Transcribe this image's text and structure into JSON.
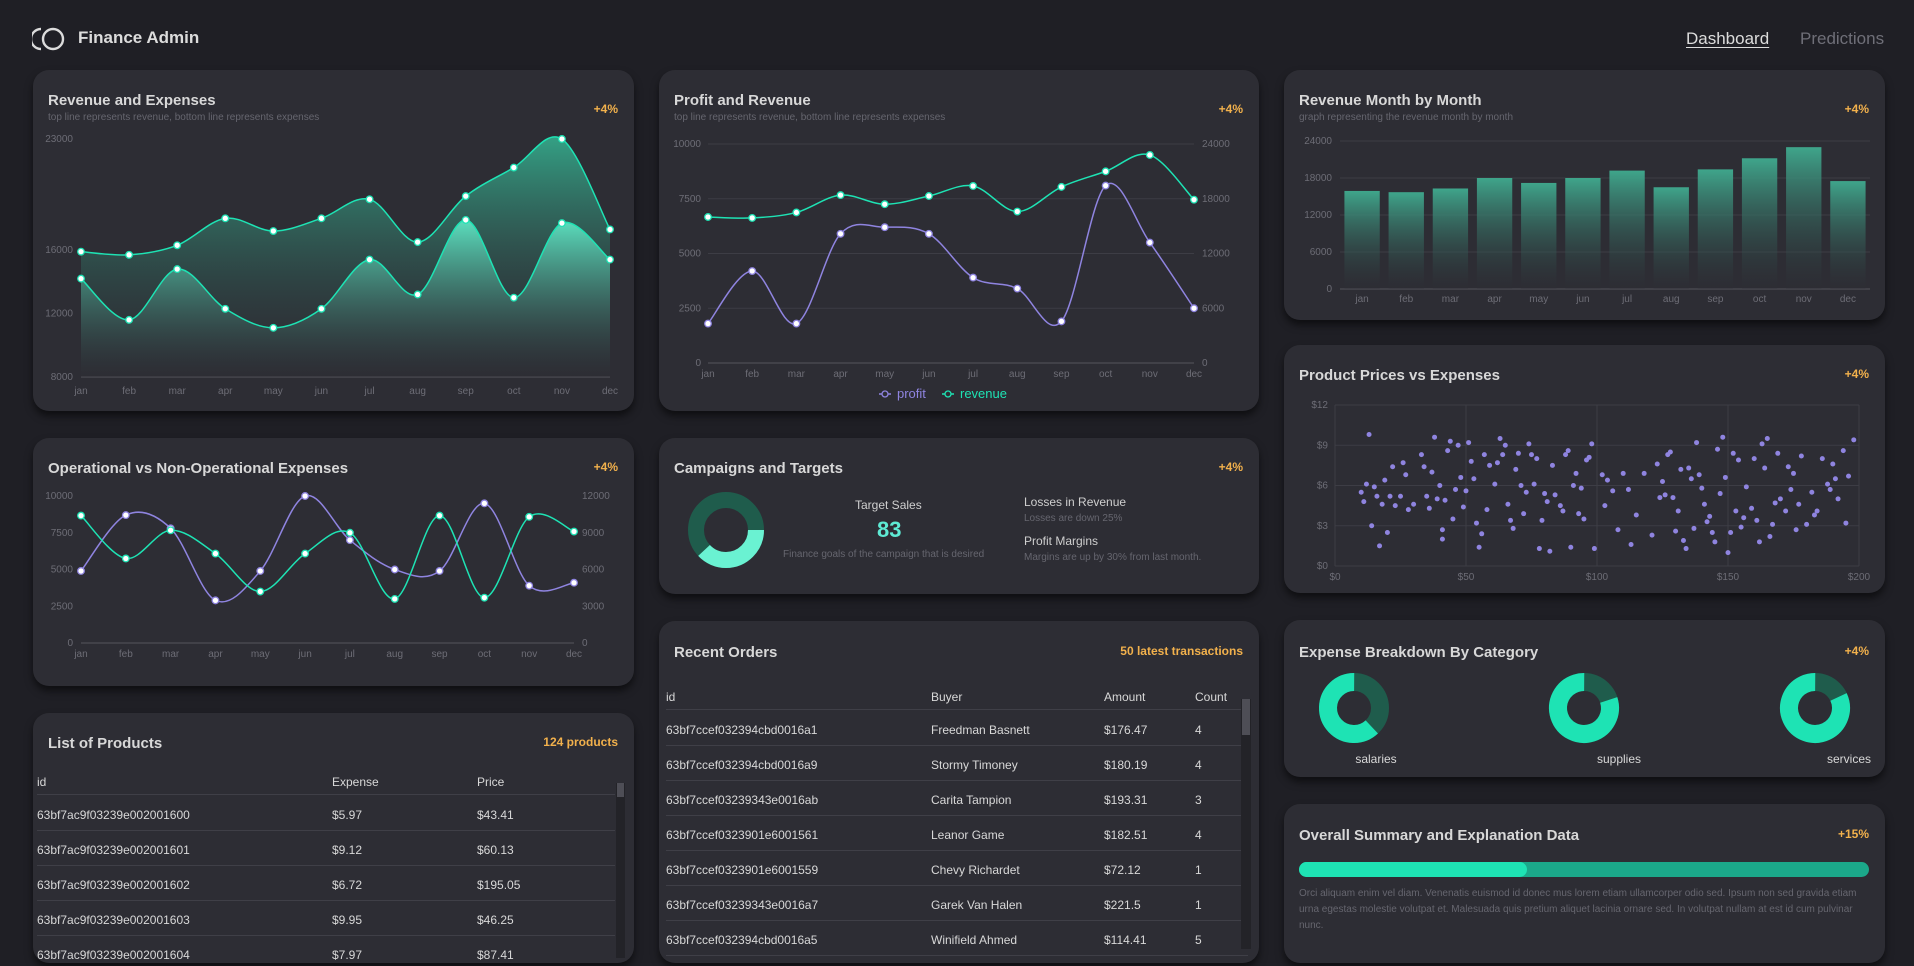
{
  "app": {
    "title": "Finance Admin"
  },
  "nav": [
    {
      "label": "Dashboard",
      "active": true
    },
    {
      "label": "Predictions",
      "active": false
    }
  ],
  "colors": {
    "accent": "#1ee3b4",
    "purple": "#8f84e0",
    "orange": "#f2b14c",
    "bg": "#1f1f25",
    "card": "#2d2d34"
  },
  "cards": {
    "rev_exp": {
      "title": "Revenue and Expenses",
      "subtitle": "top line represents revenue, bottom line represents expenses",
      "badge": "+4%"
    },
    "profit_rev": {
      "title": "Profit and Revenue",
      "subtitle": "top line represents revenue, bottom line represents expenses",
      "badge": "+4%",
      "legend_profit": "profit",
      "legend_revenue": "revenue"
    },
    "rev_month": {
      "title": "Revenue Month by Month",
      "subtitle": "graph representing the revenue month by month",
      "badge": "+4%"
    },
    "op_nonop": {
      "title": "Operational vs Non-Operational Expenses",
      "badge": "+4%"
    },
    "campaigns": {
      "title": "Campaigns and Targets",
      "badge": "+4%",
      "target_label": "Target Sales",
      "target_value": "83",
      "target_desc": "Finance goals of the campaign that is desired",
      "losses_title": "Losses in Revenue",
      "losses_desc": "Losses are down 25%",
      "margins_title": "Profit Margins",
      "margins_desc": "Margins are up by 30% from last month."
    },
    "price_exp": {
      "title": "Product Prices vs Expenses",
      "badge": "+4%"
    },
    "products": {
      "title": "List of Products",
      "badge": "124 products",
      "columns": [
        "id",
        "Expense",
        "Price"
      ],
      "rows": [
        [
          "63bf7ac9f03239e002001600",
          "$5.97",
          "$43.41"
        ],
        [
          "63bf7ac9f03239e002001601",
          "$9.12",
          "$60.13"
        ],
        [
          "63bf7ac9f03239e002001602",
          "$6.72",
          "$195.05"
        ],
        [
          "63bf7ac9f03239e002001603",
          "$9.95",
          "$46.25"
        ],
        [
          "63bf7ac9f03239e002001604",
          "$7.97",
          "$87.41"
        ]
      ]
    },
    "orders": {
      "title": "Recent Orders",
      "badge": "50 latest transactions",
      "columns": [
        "id",
        "Buyer",
        "Amount",
        "Count"
      ],
      "rows": [
        [
          "63bf7ccef032394cbd0016a1",
          "Freedman Basnett",
          "$176.47",
          "4"
        ],
        [
          "63bf7ccef032394cbd0016a9",
          "Stormy Timoney",
          "$180.19",
          "4"
        ],
        [
          "63bf7ccef03239343e0016ab",
          "Carita Tampion",
          "$193.31",
          "3"
        ],
        [
          "63bf7ccef0323901e6001561",
          "Leanor Game",
          "$182.51",
          "4"
        ],
        [
          "63bf7ccef0323901e6001559",
          "Chevy Richardet",
          "$72.12",
          "1"
        ],
        [
          "63bf7ccef03239343e0016a7",
          "Garek Van Halen",
          "$221.5",
          "1"
        ],
        [
          "63bf7ccef032394cbd0016a5",
          "Winifield Ahmed",
          "$114.41",
          "5"
        ]
      ]
    },
    "breakdown": {
      "title": "Expense Breakdown By Category",
      "badge": "+4%",
      "items": [
        {
          "label": "salaries",
          "fraction": 0.62
        },
        {
          "label": "supplies",
          "fraction": 0.8
        },
        {
          "label": "services",
          "fraction": 0.82
        }
      ]
    },
    "summary": {
      "title": "Overall Summary and Explanation Data",
      "badge": "+15%",
      "progress": 0.4,
      "text": "Orci aliquam enim vel diam. Venenatis euismod id donec mus lorem etiam ullamcorper odio sed. Ipsum non sed gravida etiam urna egestas molestie volutpat et. Malesuada quis pretium aliquet lacinia ornare sed. In volutpat nullam at est id cum pulvinar nunc."
    }
  },
  "chart_data": [
    {
      "id": "revenue_expenses",
      "type": "area",
      "categories": [
        "jan",
        "feb",
        "mar",
        "apr",
        "may",
        "jun",
        "jul",
        "aug",
        "sep",
        "oct",
        "nov",
        "dec"
      ],
      "ylim": [
        8000,
        23000
      ],
      "yticks": [
        "8000",
        "12000",
        "16000",
        "23000"
      ],
      "series": [
        {
          "name": "revenue",
          "values": [
            15900,
            15700,
            16300,
            18000,
            17200,
            18000,
            19200,
            16500,
            19400,
            21200,
            23000,
            17300
          ]
        },
        {
          "name": "expenses",
          "values": [
            14200,
            11600,
            14800,
            12300,
            11100,
            12300,
            15400,
            13200,
            17900,
            13000,
            17700,
            15400
          ]
        }
      ]
    },
    {
      "id": "profit_revenue",
      "type": "line",
      "categories": [
        "jan",
        "feb",
        "mar",
        "apr",
        "may",
        "jun",
        "jul",
        "aug",
        "sep",
        "oct",
        "nov",
        "dec"
      ],
      "ylim_left": [
        0,
        10000
      ],
      "yticks_left": [
        "0",
        "2500",
        "5000",
        "7500",
        "10000"
      ],
      "ylim_right": [
        0,
        24000
      ],
      "yticks_right": [
        "0",
        "6000",
        "12000",
        "18000",
        "24000"
      ],
      "series": [
        {
          "name": "profit",
          "axis": "left",
          "values": [
            1800,
            4200,
            1800,
            5900,
            6200,
            5900,
            3900,
            3400,
            1900,
            8100,
            5500,
            2500
          ]
        },
        {
          "name": "revenue",
          "axis": "right",
          "values": [
            16000,
            15900,
            16500,
            18400,
            17400,
            18300,
            19400,
            16600,
            19300,
            21000,
            22800,
            17900
          ]
        }
      ]
    },
    {
      "id": "revenue_month",
      "type": "bar",
      "categories": [
        "jan",
        "feb",
        "mar",
        "apr",
        "may",
        "jun",
        "jul",
        "aug",
        "sep",
        "oct",
        "nov",
        "dec"
      ],
      "ylim": [
        0,
        24000
      ],
      "yticks": [
        "0",
        "6000",
        "12000",
        "18000",
        "24000"
      ],
      "values": [
        15900,
        15700,
        16300,
        18000,
        17200,
        18000,
        19200,
        16500,
        19400,
        21200,
        23000,
        17500
      ]
    },
    {
      "id": "op_nonop",
      "type": "line",
      "categories": [
        "jan",
        "feb",
        "mar",
        "apr",
        "may",
        "jun",
        "jul",
        "aug",
        "sep",
        "oct",
        "nov",
        "dec"
      ],
      "ylim_left": [
        0,
        10000
      ],
      "yticks_left": [
        "0",
        "2500",
        "5000",
        "7500",
        "10000"
      ],
      "ylim_right": [
        0,
        12000
      ],
      "yticks_right": [
        "0",
        "3000",
        "6000",
        "9000",
        "12000"
      ],
      "series": [
        {
          "name": "operational",
          "axis": "left",
          "values": [
            4900,
            8700,
            7800,
            2900,
            4900,
            10000,
            7000,
            5000,
            4900,
            9500,
            3900,
            4100
          ]
        },
        {
          "name": "non-operational",
          "axis": "right",
          "values": [
            10400,
            6900,
            9200,
            7300,
            4200,
            7300,
            9000,
            3600,
            10400,
            3700,
            10300,
            9100
          ]
        }
      ]
    },
    {
      "id": "price_expenses",
      "type": "scatter",
      "xlim": [
        0,
        200
      ],
      "xticks": [
        "$0",
        "$50",
        "$100",
        "$150",
        "$200"
      ],
      "ylim": [
        0,
        12
      ],
      "yticks": [
        "$0",
        "$3",
        "$6",
        "$9",
        "$12"
      ],
      "points": [
        [
          10,
          5.5
        ],
        [
          11,
          4.8
        ],
        [
          12,
          6.1
        ],
        [
          13,
          9.8
        ],
        [
          14,
          3.0
        ],
        [
          15,
          5.9
        ],
        [
          16,
          5.2
        ],
        [
          17,
          1.5
        ],
        [
          18,
          4.6
        ],
        [
          19,
          6.4
        ],
        [
          20,
          2.5
        ],
        [
          21,
          5.2
        ],
        [
          22,
          7.4
        ],
        [
          23,
          4.5
        ],
        [
          25,
          5.2
        ],
        [
          26,
          7.7
        ],
        [
          27,
          6.8
        ],
        [
          28,
          4.2
        ],
        [
          30,
          4.6
        ],
        [
          33,
          8.3
        ],
        [
          34,
          7.4
        ],
        [
          35,
          5.2
        ],
        [
          36,
          4.3
        ],
        [
          37,
          7.0
        ],
        [
          38,
          9.6
        ],
        [
          39,
          5.0
        ],
        [
          40,
          6.0
        ],
        [
          41,
          2.0
        ],
        [
          41,
          2.7
        ],
        [
          42,
          4.9
        ],
        [
          43,
          8.6
        ],
        [
          44,
          9.3
        ],
        [
          45,
          3.5
        ],
        [
          46,
          5.7
        ],
        [
          47,
          9.0
        ],
        [
          48,
          6.6
        ],
        [
          49,
          4.4
        ],
        [
          50,
          5.6
        ],
        [
          51,
          9.2
        ],
        [
          52,
          7.8
        ],
        [
          53,
          6.5
        ],
        [
          54,
          3.2
        ],
        [
          55,
          1.4
        ],
        [
          56,
          2.4
        ],
        [
          57,
          8.3
        ],
        [
          58,
          4.2
        ],
        [
          59,
          7.5
        ],
        [
          61,
          6.1
        ],
        [
          62,
          7.7
        ],
        [
          63,
          9.5
        ],
        [
          64,
          8.3
        ],
        [
          65,
          9.0
        ],
        [
          66,
          4.6
        ],
        [
          67,
          3.4
        ],
        [
          68,
          2.8
        ],
        [
          69,
          7.2
        ],
        [
          70,
          8.4
        ],
        [
          71,
          6.0
        ],
        [
          72,
          3.9
        ],
        [
          73,
          5.5
        ],
        [
          74,
          9.1
        ],
        [
          75,
          8.3
        ],
        [
          76,
          6.1
        ],
        [
          77,
          8.0
        ],
        [
          78,
          1.3
        ],
        [
          79,
          3.4
        ],
        [
          80,
          5.4
        ],
        [
          81,
          4.8
        ],
        [
          82,
          1.1
        ],
        [
          83,
          7.5
        ],
        [
          84,
          5.3
        ],
        [
          86,
          4.5
        ],
        [
          87,
          4.1
        ],
        [
          88,
          8.3
        ],
        [
          89,
          8.6
        ],
        [
          90,
          1.4
        ],
        [
          91,
          6.0
        ],
        [
          92,
          6.9
        ],
        [
          93,
          3.9
        ],
        [
          94,
          5.8
        ],
        [
          95,
          3.5
        ],
        [
          96,
          7.9
        ],
        [
          97,
          8.1
        ],
        [
          98,
          9.1
        ],
        [
          99,
          1.3
        ],
        [
          102,
          6.8
        ],
        [
          103,
          4.5
        ],
        [
          104,
          6.4
        ],
        [
          106,
          5.6
        ],
        [
          108,
          2.7
        ],
        [
          110,
          6.9
        ],
        [
          112,
          5.7
        ],
        [
          113,
          1.6
        ],
        [
          115,
          3.8
        ],
        [
          118,
          6.9
        ],
        [
          121,
          2.3
        ],
        [
          123,
          7.6
        ],
        [
          124,
          5.1
        ],
        [
          125,
          6.3
        ],
        [
          126,
          5.3
        ],
        [
          127,
          8.3
        ],
        [
          128,
          8.5
        ],
        [
          129,
          5.1
        ],
        [
          130,
          2.6
        ],
        [
          131,
          4.1
        ],
        [
          132,
          7.2
        ],
        [
          133,
          1.9
        ],
        [
          134,
          1.3
        ],
        [
          135,
          7.3
        ],
        [
          136,
          6.5
        ],
        [
          137,
          2.8
        ],
        [
          138,
          9.2
        ],
        [
          139,
          6.8
        ],
        [
          140,
          5.8
        ],
        [
          141,
          4.6
        ],
        [
          142,
          3.3
        ],
        [
          143,
          3.7
        ],
        [
          144,
          2.5
        ],
        [
          145,
          1.8
        ],
        [
          146,
          8.7
        ],
        [
          147,
          5.4
        ],
        [
          148,
          9.6
        ],
        [
          149,
          6.6
        ],
        [
          150,
          1.0
        ],
        [
          151,
          2.5
        ],
        [
          152,
          8.4
        ],
        [
          153,
          4.1
        ],
        [
          154,
          7.9
        ],
        [
          155,
          2.9
        ],
        [
          156,
          3.6
        ],
        [
          157,
          5.9
        ],
        [
          159,
          4.3
        ],
        [
          160,
          8.0
        ],
        [
          161,
          3.4
        ],
        [
          162,
          1.8
        ],
        [
          163,
          9.1
        ],
        [
          164,
          7.3
        ],
        [
          165,
          9.5
        ],
        [
          166,
          2.2
        ],
        [
          167,
          3.1
        ],
        [
          168,
          4.7
        ],
        [
          169,
          8.4
        ],
        [
          170,
          5.0
        ],
        [
          172,
          4.1
        ],
        [
          173,
          7.4
        ],
        [
          174,
          5.7
        ],
        [
          175,
          6.9
        ],
        [
          176,
          2.7
        ],
        [
          177,
          4.6
        ],
        [
          178,
          8.2
        ],
        [
          180,
          3.1
        ],
        [
          182,
          5.5
        ],
        [
          183,
          3.8
        ],
        [
          184,
          4.1
        ],
        [
          186,
          8.0
        ],
        [
          188,
          6.1
        ],
        [
          189,
          5.7
        ],
        [
          190,
          7.6
        ],
        [
          191,
          6.5
        ],
        [
          192,
          5.0
        ],
        [
          194,
          8.6
        ],
        [
          195,
          3.2
        ],
        [
          196,
          6.7
        ],
        [
          198,
          9.4
        ]
      ]
    },
    {
      "id": "campaign_donut",
      "type": "pie",
      "values": [
        0.62,
        0.38
      ]
    }
  ]
}
